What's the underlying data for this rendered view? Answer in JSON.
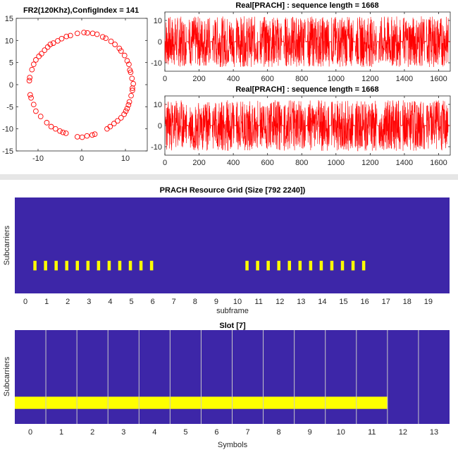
{
  "figure": {
    "background": "#ffffff",
    "separator_color": "#e6e6e6"
  },
  "chart_data": [
    {
      "id": "constellation",
      "type": "scatter",
      "title": "FR2(120Khz),ConfigIndex = 141",
      "xlabel": "",
      "ylabel": "",
      "xlim": [
        -15,
        15
      ],
      "ylim": [
        -15,
        15
      ],
      "xticks": [
        -10,
        0,
        10
      ],
      "yticks": [
        15,
        10,
        5,
        0,
        -5,
        -10,
        -15
      ],
      "marker": "circle",
      "color": "#ff0000",
      "points": [
        [
          11.8,
          0.2
        ],
        [
          11.6,
          -0.8
        ],
        [
          11.5,
          1.4
        ],
        [
          11.2,
          2.8
        ],
        [
          11.0,
          3.3
        ],
        [
          10.8,
          4.6
        ],
        [
          10.4,
          5.4
        ],
        [
          9.8,
          6.6
        ],
        [
          9.0,
          7.6
        ],
        [
          8.6,
          8.2
        ],
        [
          7.6,
          9.1
        ],
        [
          6.7,
          9.8
        ],
        [
          5.5,
          10.5
        ],
        [
          4.8,
          10.8
        ],
        [
          3.5,
          11.4
        ],
        [
          2.5,
          11.6
        ],
        [
          1.3,
          11.7
        ],
        [
          0.5,
          11.8
        ],
        [
          -1.0,
          11.6
        ],
        [
          -2.6,
          11.1
        ],
        [
          -3.5,
          10.9
        ],
        [
          -4.6,
          10.4
        ],
        [
          -5.5,
          9.9
        ],
        [
          -6.5,
          9.4
        ],
        [
          -7.2,
          9.1
        ],
        [
          -7.8,
          8.5
        ],
        [
          -8.5,
          7.8
        ],
        [
          -9.2,
          7.0
        ],
        [
          -9.8,
          6.4
        ],
        [
          -10.5,
          5.6
        ],
        [
          -11.0,
          4.6
        ],
        [
          -11.4,
          3.4
        ],
        [
          -11.9,
          1.6
        ],
        [
          -12.0,
          0.9
        ],
        [
          -11.8,
          -2.3
        ],
        [
          -11.6,
          -3.0
        ],
        [
          -11.0,
          -4.5
        ],
        [
          -10.5,
          -6.0
        ],
        [
          -9.4,
          -7.2
        ],
        [
          -8.0,
          -8.6
        ],
        [
          -7.0,
          -9.5
        ],
        [
          -6.0,
          -10.0
        ],
        [
          -5.0,
          -10.5
        ],
        [
          -4.3,
          -10.8
        ],
        [
          -3.6,
          -11.0
        ],
        [
          -1.0,
          -11.8
        ],
        [
          0.1,
          -11.9
        ],
        [
          1.2,
          -11.6
        ],
        [
          2.4,
          -11.4
        ],
        [
          3.0,
          -11.2
        ],
        [
          5.8,
          -10.0
        ],
        [
          6.5,
          -9.5
        ],
        [
          7.4,
          -8.8
        ],
        [
          8.2,
          -8.2
        ],
        [
          9.0,
          -7.5
        ],
        [
          9.7,
          -6.7
        ],
        [
          10.1,
          -6.0
        ],
        [
          10.4,
          -5.4
        ],
        [
          10.7,
          -4.6
        ],
        [
          10.9,
          -3.9
        ],
        [
          11.3,
          -2.5
        ],
        [
          11.6,
          -1.3
        ]
      ]
    },
    {
      "id": "real-prach-1",
      "type": "line",
      "title": "Real[PRACH] : sequence length = 1668",
      "xlabel": "",
      "ylabel": "",
      "xlim": [
        0,
        1668
      ],
      "ylim": [
        -14,
        14
      ],
      "xticks": [
        0,
        200,
        400,
        600,
        800,
        1000,
        1200,
        1400,
        1600
      ],
      "yticks": [
        10,
        0,
        -10
      ],
      "color": "#ff0000",
      "n_samples": 1668,
      "amplitude": 12,
      "gap_period_samples": 139,
      "gap_width_samples": 12,
      "seed": 7
    },
    {
      "id": "real-prach-2",
      "type": "line",
      "title": "Real[PRACH] : sequence length = 1668",
      "xlabel": "",
      "ylabel": "",
      "xlim": [
        0,
        1668
      ],
      "ylim": [
        -14,
        14
      ],
      "xticks": [
        0,
        200,
        400,
        600,
        800,
        1000,
        1200,
        1400,
        1600
      ],
      "yticks": [
        10,
        0,
        -10
      ],
      "color": "#ff0000",
      "n_samples": 1668,
      "amplitude": 12,
      "gap_period_samples": 139,
      "gap_width_samples": 12,
      "seed": 23
    },
    {
      "id": "prach-resource-grid",
      "type": "heatmap",
      "title": "PRACH Resource Grid (Size [792 2240])",
      "xlabel": "subframe",
      "ylabel": "Subcarriers",
      "xlim": [
        -0.5,
        20
      ],
      "xticks": [
        0,
        1,
        2,
        3,
        4,
        5,
        6,
        7,
        8,
        9,
        10,
        11,
        12,
        13,
        14,
        15,
        16,
        17,
        18,
        19
      ],
      "background_color": "#3d26a8",
      "mark_color": "#ffff00",
      "mark_band": [
        0.24,
        0.34
      ],
      "mark_width": 0.15,
      "marks": [
        0.45,
        0.95,
        1.45,
        1.95,
        2.45,
        2.95,
        3.45,
        3.95,
        4.45,
        4.95,
        5.45,
        5.95,
        10.45,
        10.95,
        11.45,
        11.95,
        12.45,
        12.95,
        13.45,
        13.95,
        14.45,
        14.95,
        15.45,
        15.95
      ]
    },
    {
      "id": "slot-grid",
      "type": "heatmap",
      "title": "Slot [7]",
      "xlabel": "Symbols",
      "ylabel": "Subcarriers",
      "xlim": [
        -0.5,
        13.5
      ],
      "xticks": [
        0,
        1,
        2,
        3,
        4,
        5,
        6,
        7,
        8,
        9,
        10,
        11,
        12,
        13
      ],
      "background_color": "#3d26a8",
      "mark_color": "#ffff00",
      "divider_color": "#c8c8c8",
      "dividers": [
        0.5,
        1.5,
        2.5,
        3.5,
        4.5,
        5.5,
        6.5,
        7.5,
        8.5,
        9.5,
        10.5,
        11.5,
        12.5
      ],
      "band_symbols": [
        -0.5,
        11.5
      ],
      "band_rows": [
        0.16,
        0.29
      ]
    }
  ]
}
